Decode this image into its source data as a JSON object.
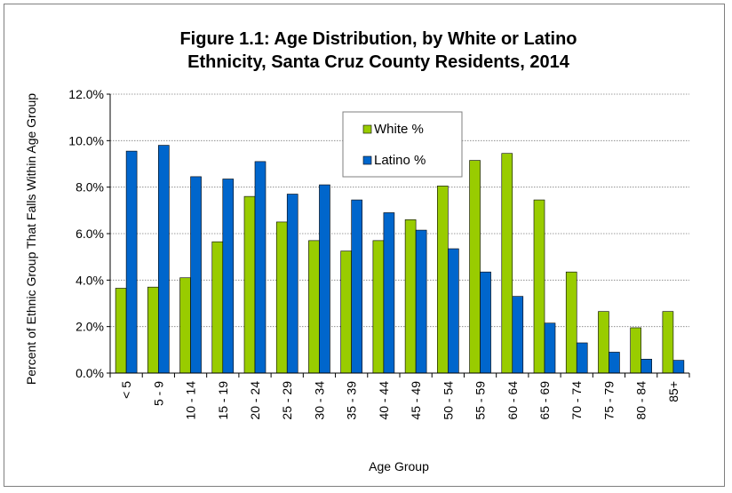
{
  "chart_data": {
    "type": "bar",
    "title_line1": "Figure 1.1:  Age Distribution, by White or Latino",
    "title_line2": "Ethnicity, Santa Cruz County Residents, 2014",
    "xlabel": "Age Group",
    "ylabel": "Percent of Ethnic Group That Falls Within Age Group",
    "ylim": [
      0,
      12
    ],
    "y_ticks": [
      "0.0%",
      "2.0%",
      "4.0%",
      "6.0%",
      "8.0%",
      "10.0%",
      "12.0%"
    ],
    "y_tick_values": [
      0,
      2,
      4,
      6,
      8,
      10,
      12
    ],
    "grid": true,
    "legend_position": "upper-center",
    "categories": [
      "< 5",
      "5 - 9",
      "10 - 14",
      "15 - 19",
      "20 - 24",
      "25 - 29",
      "30 - 34",
      "35 - 39",
      "40 - 44",
      "45 - 49",
      "50 - 54",
      "55 - 59",
      "60 - 64",
      "65 - 69",
      "70 - 74",
      "75 - 79",
      "80 - 84",
      "85+"
    ],
    "series": [
      {
        "name": "White %",
        "color": "#99cc00",
        "values": [
          3.65,
          3.7,
          4.1,
          5.65,
          7.6,
          6.5,
          5.7,
          5.25,
          5.7,
          6.6,
          8.05,
          9.15,
          9.45,
          7.45,
          4.35,
          2.65,
          1.95,
          2.65
        ]
      },
      {
        "name": "Latino %",
        "color": "#0066cc",
        "values": [
          9.55,
          9.8,
          8.45,
          8.35,
          9.1,
          7.7,
          8.1,
          7.45,
          6.9,
          6.15,
          5.35,
          4.35,
          3.3,
          2.15,
          1.3,
          0.9,
          0.6,
          0.55
        ]
      }
    ]
  }
}
